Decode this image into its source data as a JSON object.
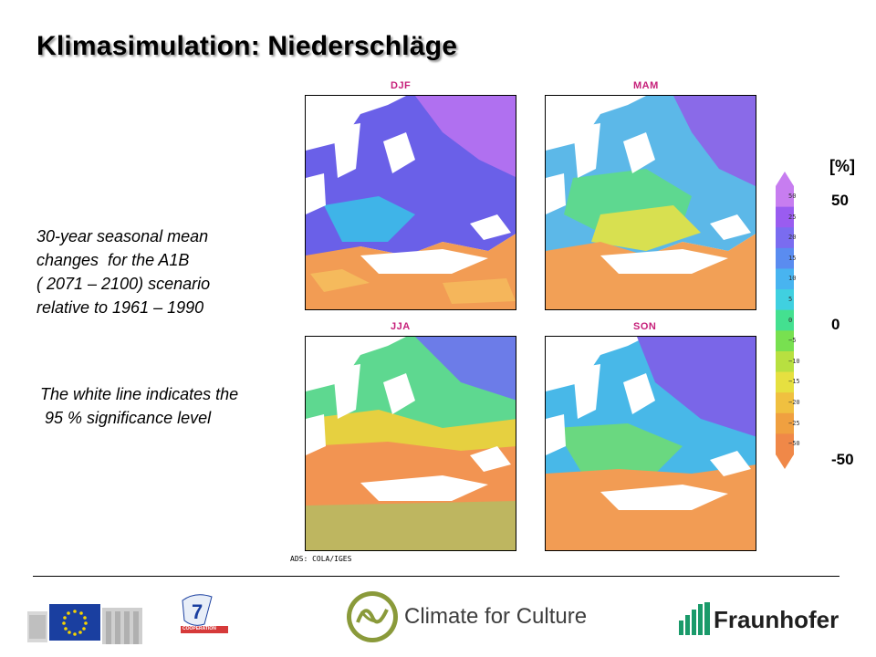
{
  "slide": {
    "title": "Klimasimulation: Niederschläge",
    "description": "30-year seasonal mean\nchanges  for the A1B\n( 2071 – 2100) scenario\nrelative to 1961 – 1990",
    "significance_note": "The white line indicates the\n 95 % significance level"
  },
  "panels": [
    {
      "label": "DJF"
    },
    {
      "label": "MAM"
    },
    {
      "label": "JJA"
    },
    {
      "label": "SON"
    }
  ],
  "credit": "ADS: COLA/IGES",
  "colorbar": {
    "unit": "[%]",
    "tick_top": "50",
    "tick_mid": "0",
    "tick_bottom": "-50",
    "labels": [
      "50",
      "25",
      "20",
      "15",
      "10",
      "5",
      "0",
      "−5",
      "−10",
      "−15",
      "−20",
      "−25",
      "−50"
    ],
    "colors": [
      "#c77df0",
      "#9a5cf0",
      "#7a6cf0",
      "#5a8cf0",
      "#48b4f0",
      "#40d0e0",
      "#44e090",
      "#78e050",
      "#b8e040",
      "#e6e040",
      "#f0c040",
      "#f0a040",
      "#f08848"
    ]
  },
  "logos": {
    "eu": "eu-flag-logo",
    "fp7": "fp7-cooperation-logo",
    "fp7_sub": "COOPERATION",
    "climate_for_culture": "Climate for Culture",
    "fraunhofer": "Fraunhofer"
  }
}
